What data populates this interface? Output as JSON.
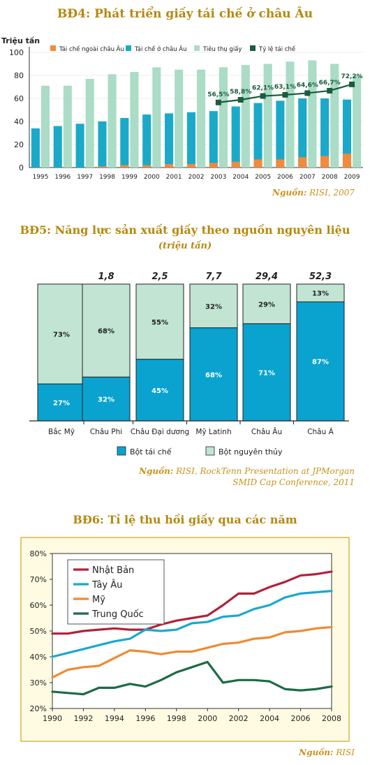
{
  "chart_data": [
    {
      "type": "bar",
      "title": "BĐ4: Phát triển giấy tái chế ở châu Âu",
      "ylabel": "Triệu tấn",
      "ylim": [
        0,
        100
      ],
      "yticks": [
        0,
        20,
        40,
        60,
        80,
        100
      ],
      "categories": [
        "1995",
        "1996",
        "1997",
        "1998",
        "1999",
        "2000",
        "2001",
        "2002",
        "2003",
        "2004",
        "2005",
        "2006",
        "2007",
        "2008",
        "2009"
      ],
      "series": [
        {
          "name": "Tái chế ngoài châu Âu",
          "color": "#f08a3c",
          "values": [
            0,
            0,
            0,
            1,
            2,
            2,
            3,
            3,
            4,
            5,
            7,
            7,
            9,
            10,
            12
          ]
        },
        {
          "name": "Tái chế ở châu Âu",
          "color": "#1ba9c9",
          "values": [
            34,
            36,
            38,
            40,
            43,
            46,
            47,
            48,
            49,
            53,
            56,
            58,
            60,
            60,
            59
          ]
        },
        {
          "name": "Tiêu thụ giấy",
          "color": "#aadcc6",
          "values": [
            71,
            71,
            77,
            81,
            83,
            87,
            85,
            85,
            87,
            89,
            90,
            92,
            93,
            90,
            80
          ]
        }
      ],
      "line": {
        "name": "Tỷ lệ tái chế",
        "color": "#1a5c3c",
        "x": [
          "2003",
          "2004",
          "2005",
          "2006",
          "2007",
          "2008",
          "2009"
        ],
        "values": [
          56.5,
          58.8,
          62.1,
          63.1,
          64.6,
          66.7,
          72.2
        ],
        "labels": [
          "56,5%",
          "58,8%",
          "62,1%",
          "63,1%",
          "64,6%",
          "66,7%",
          "72,2%"
        ]
      },
      "source_label": "Nguồn:",
      "source": "RISI, 2007"
    },
    {
      "type": "bar",
      "stacked_percent": true,
      "title": "BĐ5: Năng lực sản xuất giấy theo nguồn nguyên liệu",
      "subtitle": "(triệu tấn)",
      "categories": [
        "Bắc Mỹ",
        "Châu Phi",
        "Châu Đại dương",
        "Mỹ Latinh",
        "Châu Âu",
        "Châu Á"
      ],
      "totals": [
        "",
        "1,8",
        "2,5",
        "7,7",
        "29,4",
        "52,3"
      ],
      "series": [
        {
          "name": "Bột tái chế",
          "color": "#0aa3cf",
          "values": [
            27,
            32,
            45,
            68,
            71,
            87
          ],
          "labels": [
            "27%",
            "32%",
            "45%",
            "68%",
            "71%",
            "87%"
          ]
        },
        {
          "name": "Bột nguyên thủy",
          "color": "#c1e4d3",
          "values": [
            73,
            68,
            55,
            32,
            29,
            13
          ],
          "labels": [
            "73%",
            "68%",
            "55%",
            "32%",
            "29%",
            "13%"
          ]
        }
      ],
      "source_label": "Nguồn:",
      "source": "RISI, RockTenn Presentation at JPMorgan",
      "source_line2": "SMID Cap Conference, 2011"
    },
    {
      "type": "line",
      "title": "BĐ6: Tỉ lệ thu hồi giấy qua các năm",
      "xlim": [
        1990,
        2008
      ],
      "xticks": [
        "1990",
        "1992",
        "1994",
        "1996",
        "1998",
        "2000",
        "2002",
        "2004",
        "2006",
        "2008"
      ],
      "ylim": [
        20,
        80
      ],
      "yticks": [
        "20%",
        "30%",
        "40%",
        "50%",
        "60%",
        "70%",
        "80%"
      ],
      "legend_position": "top-left",
      "series": [
        {
          "name": "Nhật Bản",
          "color": "#b3213a",
          "x": [
            1990,
            1991,
            1992,
            1993,
            1994,
            1995,
            1996,
            1997,
            1998,
            1999,
            2000,
            2001,
            2002,
            2003,
            2004,
            2005,
            2006,
            2007,
            2008
          ],
          "values": [
            49,
            49,
            50,
            50.5,
            51,
            50.5,
            50.5,
            52.5,
            54,
            55,
            56,
            60,
            64.5,
            64.5,
            67,
            69,
            71.5,
            72,
            73
          ]
        },
        {
          "name": "Tây Âu",
          "color": "#1aa9cc",
          "x": [
            1990,
            1991,
            1992,
            1993,
            1994,
            1995,
            1996,
            1997,
            1998,
            1999,
            2000,
            2001,
            2002,
            2003,
            2004,
            2005,
            2006,
            2007,
            2008
          ],
          "values": [
            40,
            41.5,
            43,
            44.5,
            46,
            47,
            50.5,
            50,
            50.5,
            53,
            53.5,
            55.5,
            56,
            58.5,
            60,
            63,
            64.5,
            65,
            65.5
          ]
        },
        {
          "name": "Mỹ",
          "color": "#ef8a32",
          "x": [
            1990,
            1991,
            1992,
            1993,
            1994,
            1995,
            1996,
            1997,
            1998,
            1999,
            2000,
            2001,
            2002,
            2003,
            2004,
            2005,
            2006,
            2007,
            2008
          ],
          "values": [
            32,
            35,
            36,
            36.5,
            39.5,
            42.5,
            42,
            41,
            42,
            42,
            43.5,
            45,
            45.5,
            47,
            47.5,
            49.5,
            50,
            51,
            51.5
          ]
        },
        {
          "name": "Trung Quốc",
          "color": "#1c6b46",
          "x": [
            1990,
            1991,
            1992,
            1993,
            1994,
            1995,
            1996,
            1997,
            1998,
            1999,
            2000,
            2001,
            2002,
            2003,
            2004,
            2005,
            2006,
            2007,
            2008
          ],
          "values": [
            26.5,
            26,
            25.5,
            28,
            28,
            29.5,
            28.5,
            31,
            34,
            36,
            38,
            30,
            31,
            31,
            30.5,
            27.5,
            27,
            27.5,
            28.5
          ]
        }
      ],
      "source_label": "Nguồn:",
      "source": "RISI"
    }
  ]
}
